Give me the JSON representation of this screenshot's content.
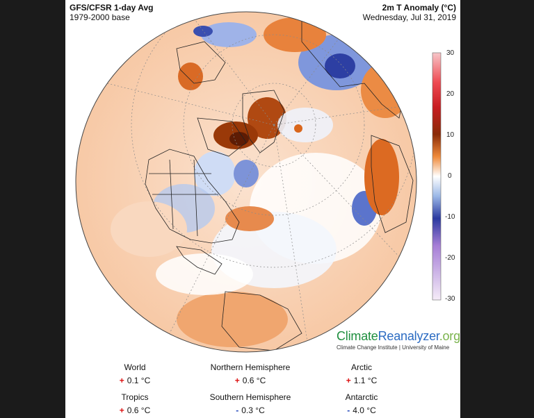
{
  "header": {
    "title_left": "GFS/CFSR 1-day Avg",
    "subtitle_left": "1979-2000 base",
    "title_right": "2m T Anomaly (°C)",
    "subtitle_right": "Wednesday, Jul 31, 2019"
  },
  "colorbar": {
    "ticks": [
      "30",
      "20",
      "10",
      "0",
      "-10",
      "-20",
      "-30"
    ],
    "colors": [
      "#f1b1b4",
      "#e2232a",
      "#a3360a",
      "#f2a060",
      "#ffffff",
      "#9cb8e6",
      "#2b3aa0",
      "#c3a3e0",
      "#f3e6f6"
    ]
  },
  "brand": {
    "name_part1": "Climate",
    "name_part2": "Reanalyzer",
    "name_part3": ".org",
    "subtitle": "Climate Change Institute | University of Maine",
    "colors": {
      "part1": "#1f8f3f",
      "part2": "#2b6bc2",
      "part3": "#7ab34c"
    }
  },
  "stats": [
    {
      "label": "World",
      "sign": "+",
      "value": "0.1 °C"
    },
    {
      "label": "Northern Hemisphere",
      "sign": "+",
      "value": "0.6 °C"
    },
    {
      "label": "Arctic",
      "sign": "+",
      "value": "1.1 °C"
    },
    {
      "label": "Tropics",
      "sign": "+",
      "value": "0.6 °C"
    },
    {
      "label": "Southern Hemisphere",
      "sign": "-",
      "value": "0.3 °C"
    },
    {
      "label": "Antarctic",
      "sign": "-",
      "value": "4.0 °C"
    }
  ]
}
